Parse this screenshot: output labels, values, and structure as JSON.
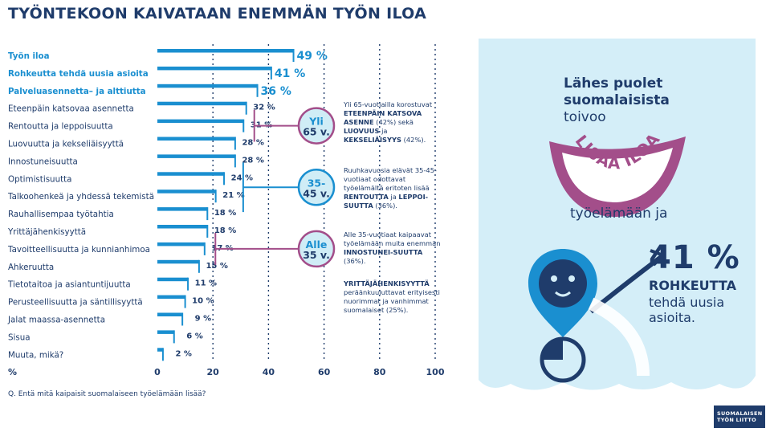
{
  "header": {
    "title": "TYÖNTEKOON KAIVATAAN ENEMMÄN TYÖN ILOA"
  },
  "question": "Q. Entä mitä kaipaisit suomalaiseen työelämään lisää?",
  "chart_data": {
    "type": "bar",
    "orientation": "horizontal",
    "categories": [
      "Työn iloa",
      "Rohkeutta tehdä uusia asioita",
      "Palveluasennetta– ja alttiutta",
      "Eteenpäin katsovaa asennetta",
      "Rentoutta ja leppoisuutta",
      "Luovuutta ja kekseliäisyyttä",
      "Innostuneisuutta",
      "Optimistisuutta",
      "Talkoohenkeä ja yhdessä tekemistä",
      "Rauhallisempaa työtahtia",
      "Yrittäjähenkisyyttä",
      "Tavoitteellisuutta ja kunnianhimoa",
      "Ahkeruutta",
      "Tietotaitoa ja asiantuntijuutta",
      "Perusteellisuutta ja säntillisyyttä",
      "Jalat maassa-asennetta",
      "Sisua",
      "Muuta, mikä?"
    ],
    "values": [
      49,
      41,
      36,
      32,
      31,
      28,
      28,
      24,
      21,
      18,
      18,
      17,
      15,
      11,
      10,
      9,
      6,
      2
    ],
    "value_labels": [
      "49 %",
      "41 %",
      "36 %",
      "32 %",
      "31 %",
      "28 %",
      "28 %",
      "24 %",
      "21 %",
      "18 %",
      "18 %",
      "17 %",
      "15 %",
      "11 %",
      "10 %",
      "9 %",
      "6 %",
      "2 %"
    ],
    "highlighted_count": 3,
    "xlabel": "%",
    "xticks": [
      "0",
      "20",
      "40",
      "60",
      "80",
      "100"
    ],
    "xlim": [
      0,
      100
    ],
    "colors": {
      "bar": "#1a8fd0",
      "highlight_text": "#1a8fd0",
      "text": "#1f3c6b",
      "grid": "#1f3c6b"
    }
  },
  "badges": [
    {
      "line1": "Yli",
      "line2": "65 v.",
      "rows": [
        3,
        5
      ]
    },
    {
      "line1": "35-",
      "line2": "45 v.",
      "rows": [
        6,
        9
      ]
    },
    {
      "line1": "Alle",
      "line2": "35 v.",
      "rows": [
        10,
        12
      ]
    }
  ],
  "badge_colors": {
    "fill": "#d0edf6",
    "border": "#1a8fd0",
    "border_pink": "#a34e8a",
    "text": "#1f3c6b",
    "text_accent": "#1a8fd0"
  },
  "callouts": [
    {
      "parts": [
        {
          "t": "Yli 65-vuotiailla korostuvat ",
          "b": false
        },
        {
          "t": "ETEENPÄIN KATSOVA ASENNE",
          "b": true
        },
        {
          "t": " (42%) sekä ",
          "b": false
        },
        {
          "t": "LUOVUUS",
          "b": true
        },
        {
          "t": " ja ",
          "b": false
        },
        {
          "t": "KEKSELIÄISYYS",
          "b": true
        },
        {
          "t": " (42%).",
          "b": false
        }
      ]
    },
    {
      "parts": [
        {
          "t": "Ruuhkavuosia elävät 35-45-vuotiaat odottavat työelämältä eritoten lisää ",
          "b": false
        },
        {
          "t": "RENTOUTTA",
          "b": true
        },
        {
          "t": " ja ",
          "b": false
        },
        {
          "t": "LEPPOI-SUUTTA",
          "b": true
        },
        {
          "t": " (36%).",
          "b": false
        }
      ]
    },
    {
      "parts": [
        {
          "t": "Alle 35-vuotiaat kaipaavat työelämään muita enemmän ",
          "b": false
        },
        {
          "t": "INNOSTUNEI-SUUTTA",
          "b": true
        },
        {
          "t": " (36%).",
          "b": false
        }
      ]
    },
    {
      "parts": [
        {
          "t": "YRITTÄJÄHENKISYYTTÄ",
          "b": true
        },
        {
          "t": " peräänkuuluttavat erityisesti nuorimmat ja vanhimmat suomalaiset (25%).",
          "b": false
        }
      ]
    }
  ],
  "right_panel": {
    "heading_bold": "Lähes puolet suomalaisista",
    "heading_normal": "toivoo",
    "arc_text": "LISÄÄ ILOA",
    "subtext": "työelämään ja",
    "big_pct": "41 %",
    "line_bold": "ROHKEUTTA",
    "line_normal": "tehdä uusia asioita.",
    "colors": {
      "bg": "#d4eef8",
      "mouth": "#a34e8a",
      "lion": "#1f3c6b",
      "lion_accent": "#1a8fd0"
    }
  },
  "logo": {
    "line1": "SUOMALAISEN",
    "line2": "TYÖN LIITTO"
  }
}
